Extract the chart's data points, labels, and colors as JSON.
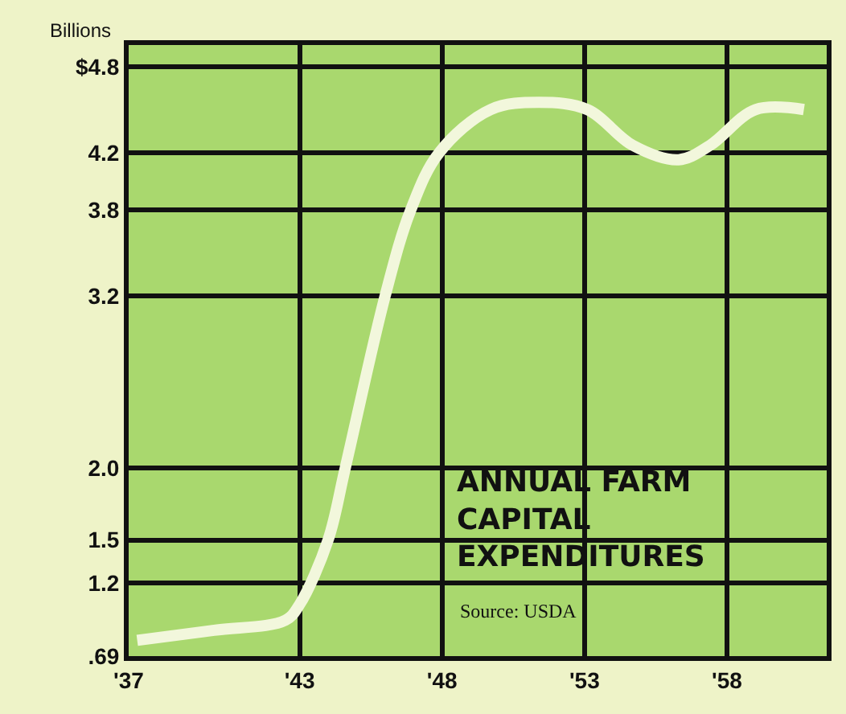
{
  "chart_data": {
    "type": "line",
    "title": "ANNUAL FARM CAPITAL EXPENDITURES",
    "ylabel": "Billions",
    "annotations": [
      "Source: USDA"
    ],
    "series": [
      {
        "color": "#f2f7dc",
        "x": [
          1937.3,
          1940,
          1942.5,
          1943,
          1944,
          1944.6,
          1946,
          1946.9,
          1947.9,
          1949.7,
          1951.4,
          1953.1,
          1954.7,
          1956.3,
          1957.4,
          1959,
          1960.7
        ],
        "values": [
          0.8,
          0.87,
          0.94,
          1.05,
          1.5,
          2.0,
          3.2,
          3.8,
          4.2,
          4.5,
          4.55,
          4.5,
          4.25,
          4.15,
          4.25,
          4.5,
          4.5
        ]
      }
    ],
    "xlim": [
      1937,
      1961.5
    ],
    "xticks": [
      {
        "value": 1937,
        "label": "'37"
      },
      {
        "value": 1943,
        "label": "'43"
      },
      {
        "value": 1948,
        "label": "'48"
      },
      {
        "value": 1953,
        "label": "'53"
      },
      {
        "value": 1958,
        "label": "'58"
      }
    ],
    "ylim": [
      0.69,
      4.95
    ],
    "yticks": [
      {
        "value": 0.69,
        "label": ".69"
      },
      1.2,
      1.5,
      {
        "value": 2.0,
        "label": "2.0"
      },
      3.2,
      3.8,
      4.2,
      {
        "value": 4.8,
        "label": "$4.8"
      }
    ],
    "grid": true,
    "marker": "none",
    "line_style": "solid"
  }
}
